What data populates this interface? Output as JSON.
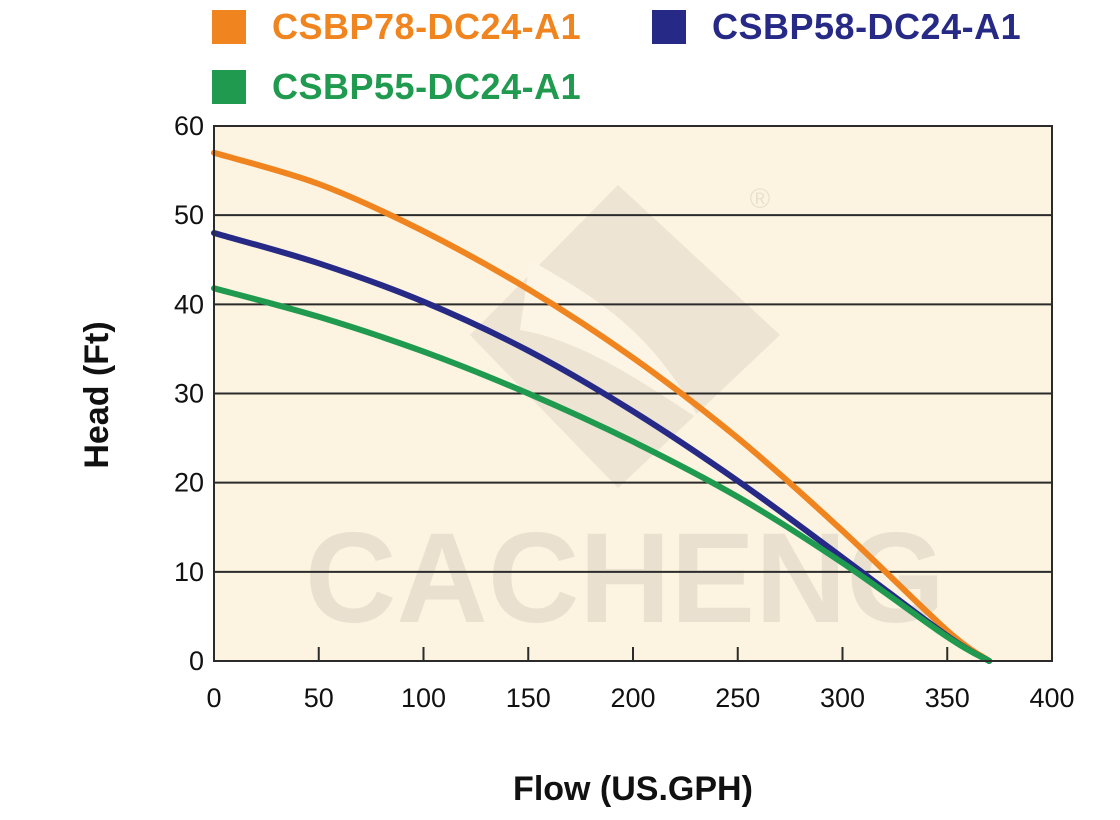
{
  "legend": [
    {
      "label": "CSBP78-DC24-A1",
      "color": "#f0841f"
    },
    {
      "label": "CSBP58-DC24-A1",
      "color": "#262a86"
    },
    {
      "label": "CSBP55-DC24-A1",
      "color": "#1f9a4e"
    }
  ],
  "colors": {
    "plot_background": "#fcf3e0",
    "grid": "#2b2b2b"
  },
  "watermark": {
    "text": "CACHENG",
    "registered": "®"
  },
  "chart_data": {
    "type": "line",
    "xlabel": "Flow (US.GPH)",
    "ylabel": "Head (Ft)",
    "xlim": [
      0,
      400
    ],
    "ylim": [
      0,
      60
    ],
    "xticks": [
      0,
      50,
      100,
      150,
      200,
      250,
      300,
      350,
      400
    ],
    "yticks": [
      0,
      10,
      20,
      30,
      40,
      50,
      60
    ],
    "grid": "horizontal",
    "legend_position": "top",
    "series": [
      {
        "name": "CSBP78-DC24-A1",
        "color": "#f0841f",
        "x": [
          0,
          50,
          100,
          150,
          200,
          250,
          300,
          350,
          370
        ],
        "y": [
          57,
          53.5,
          48.2,
          41.7,
          34,
          25,
          14.6,
          3.4,
          0
        ]
      },
      {
        "name": "CSBP58-DC24-A1",
        "color": "#262a86",
        "x": [
          0,
          50,
          100,
          150,
          200,
          250,
          300,
          350,
          370
        ],
        "y": [
          48,
          44.6,
          40.3,
          34.8,
          28,
          20.2,
          11.6,
          2.8,
          0
        ]
      },
      {
        "name": "CSBP55-DC24-A1",
        "color": "#1f9a4e",
        "x": [
          0,
          50,
          100,
          150,
          200,
          250,
          300,
          350,
          370
        ],
        "y": [
          41.8,
          38.6,
          34.7,
          30,
          24.6,
          18.4,
          11,
          2.7,
          0
        ]
      }
    ]
  }
}
